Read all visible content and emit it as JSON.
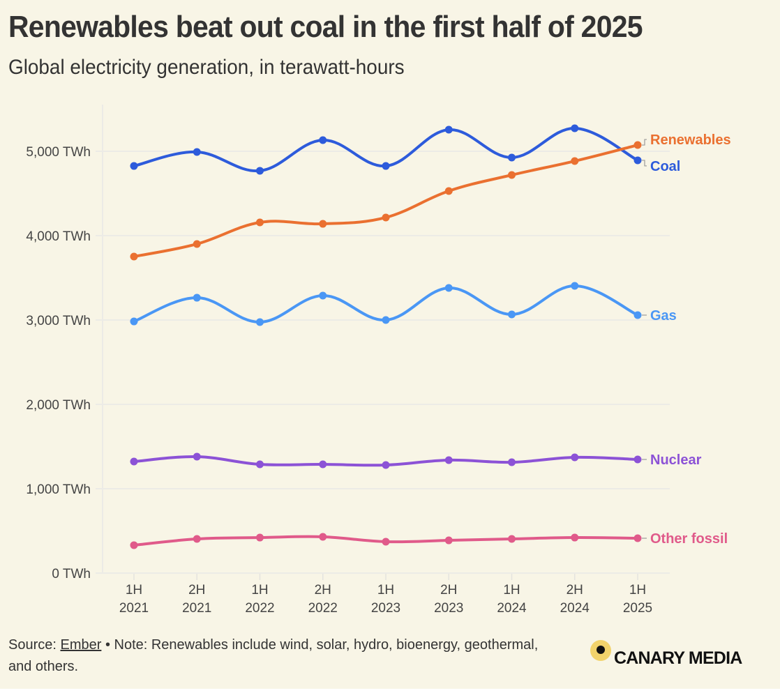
{
  "header": {
    "title": "Renewables beat out coal in the first half of 2025",
    "subtitle": "Global electricity generation, in terawatt-hours"
  },
  "footer": {
    "source_prefix": "Source: ",
    "source_link": "Ember",
    "note": " • Note: Renewables include wind, solar, hydro, bioenergy, geothermal, and others.",
    "logo_text": "CANARY MEDIA",
    "logo_accent_color": "#f2d36b"
  },
  "chart_data": {
    "type": "line",
    "title": "Renewables beat out coal in the first half of 2025",
    "subtitle": "Global electricity generation, in terawatt-hours",
    "xlabel": "",
    "ylabel": "",
    "x_labels": [
      [
        "1H",
        "2021"
      ],
      [
        "2H",
        "2021"
      ],
      [
        "1H",
        "2022"
      ],
      [
        "2H",
        "2022"
      ],
      [
        "1H",
        "2023"
      ],
      [
        "2H",
        "2023"
      ],
      [
        "1H",
        "2024"
      ],
      [
        "2H",
        "2024"
      ],
      [
        "1H",
        "2025"
      ]
    ],
    "categories": [
      "1H 2021",
      "2H 2021",
      "1H 2022",
      "2H 2022",
      "1H 2023",
      "2H 2023",
      "1H 2024",
      "2H 2024",
      "1H 2025"
    ],
    "ylim": [
      0,
      5500
    ],
    "yticks": [
      0,
      1000,
      2000,
      3000,
      4000,
      5000
    ],
    "ytick_labels": [
      "0 TWh",
      "1,000 TWh",
      "2,000 TWh",
      "3,000 TWh",
      "4,000 TWh",
      "5,000 TWh"
    ],
    "grid": true,
    "legend": "direct labels at line ends (right)",
    "series": [
      {
        "name": "Coal",
        "color": "#2d5bdb",
        "label_offset": 1,
        "values": [
          4826,
          4992,
          4769,
          5132,
          4826,
          5256,
          4926,
          5273,
          4893
        ]
      },
      {
        "name": "Renewables",
        "color": "#ea7030",
        "label_offset": -1,
        "values": [
          3752,
          3901,
          4157,
          4140,
          4215,
          4529,
          4719,
          4884,
          5074
        ]
      },
      {
        "name": "Gas",
        "color": "#4a97f5",
        "label_offset": 0,
        "values": [
          2983,
          3264,
          2975,
          3289,
          3000,
          3380,
          3066,
          3405,
          3058
        ]
      },
      {
        "name": "Nuclear",
        "color": "#8c52d6",
        "label_offset": 0,
        "values": [
          1322,
          1380,
          1289,
          1289,
          1281,
          1339,
          1314,
          1372,
          1347
        ]
      },
      {
        "name": "Other fossil",
        "color": "#e05a8a",
        "label_offset": 0,
        "values": [
          331,
          405,
          421,
          430,
          372,
          388,
          405,
          421,
          413
        ]
      }
    ]
  }
}
